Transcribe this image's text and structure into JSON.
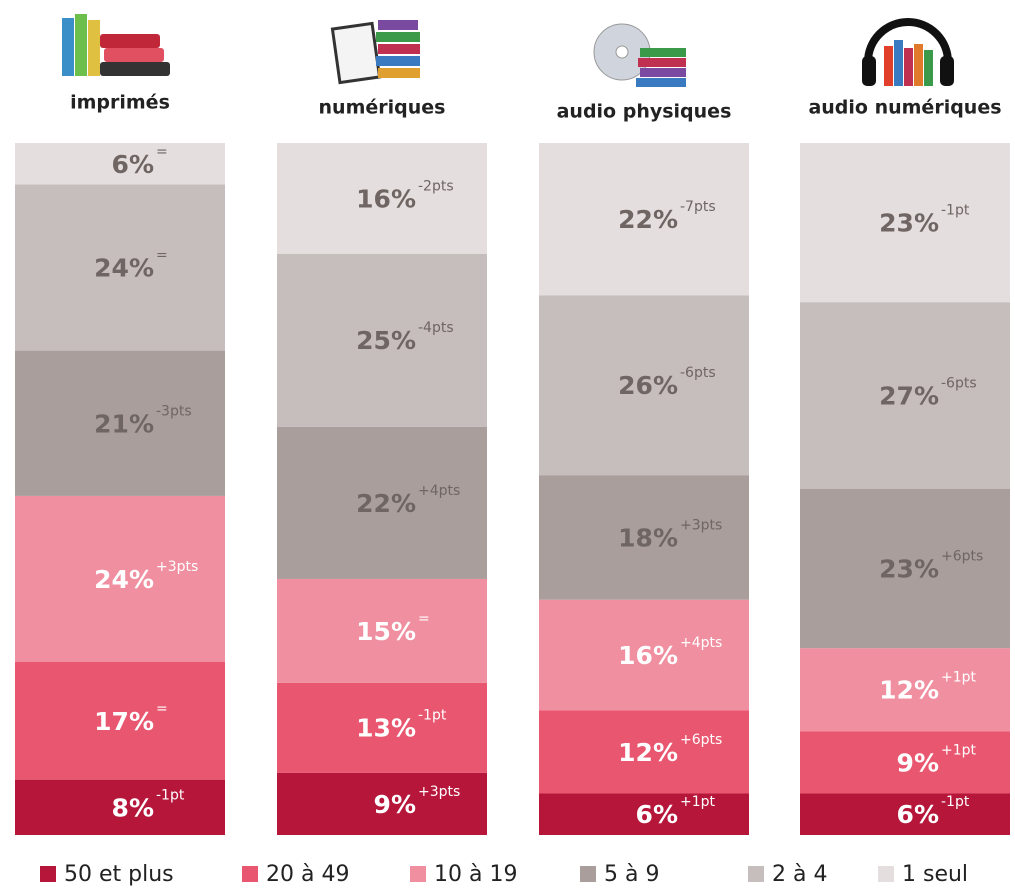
{
  "chart_data": {
    "type": "bar",
    "stacked": true,
    "categories": [
      "imprimés",
      "numériques",
      "audio physiques",
      "audio numériques"
    ],
    "ylim": [
      0,
      100
    ],
    "series": [
      {
        "name": "50 et plus",
        "color": "#b5163a",
        "label_color": "#ffffff",
        "values": [
          8,
          9,
          6,
          6
        ],
        "value_labels": [
          "8%",
          "9%",
          "6%",
          "6%"
        ],
        "changes": [
          "-1pt",
          "+3pts",
          "+1pt",
          "-1pt"
        ]
      },
      {
        "name": "20 à 49",
        "color": "#e9566f",
        "label_color": "#ffffff",
        "values": [
          17,
          13,
          12,
          9
        ],
        "value_labels": [
          "17%",
          "13%",
          "12%",
          "9%"
        ],
        "changes": [
          "=",
          "-1pt",
          "+6pts",
          "+1pt"
        ]
      },
      {
        "name": "10 à 19",
        "color": "#f08fa0",
        "label_color": "#ffffff",
        "values": [
          24,
          15,
          16,
          12
        ],
        "value_labels": [
          "24%",
          "15%",
          "16%",
          "12%"
        ],
        "changes": [
          "+3pts",
          "=",
          "+4pts",
          "+1pt"
        ]
      },
      {
        "name": "5 à 9",
        "color": "#a99e9c",
        "label_color": "#6f6563",
        "values": [
          21,
          22,
          18,
          23
        ],
        "value_labels": [
          "21%",
          "22%",
          "18%",
          "23%"
        ],
        "changes": [
          "-3pts",
          "+4pts",
          "+3pts",
          "+6pts"
        ]
      },
      {
        "name": "2 à 4",
        "color": "#c6bdbd",
        "label_color": "#6f6563",
        "values": [
          24,
          25,
          26,
          27
        ],
        "value_labels": [
          "24%",
          "25%",
          "26%",
          "27%"
        ],
        "changes": [
          "=",
          "-4pts",
          "-6pts",
          "-6pts"
        ]
      },
      {
        "name": "1 seul",
        "color": "#e4dfde",
        "label_color": "#6f6563",
        "values": [
          6,
          16,
          22,
          23
        ],
        "value_labels": [
          "6%",
          "16%",
          "22%",
          "23%"
        ],
        "changes": [
          "=",
          "-2pts",
          "-7pts",
          "-1pt"
        ]
      }
    ]
  }
}
